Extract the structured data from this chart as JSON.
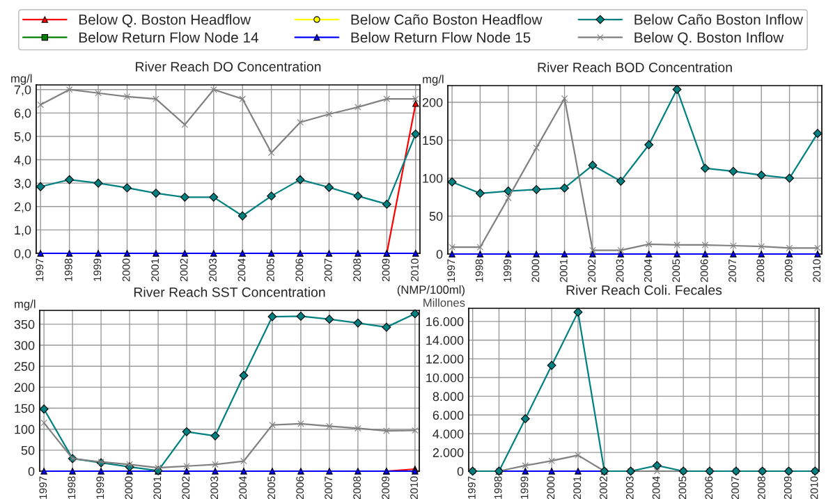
{
  "chart_data": [
    {
      "type": "line",
      "title": "River Reach DO Concentration",
      "ylabel": "mg/l",
      "legend": "top",
      "grid": true,
      "categories": [
        "1997",
        "1998",
        "1999",
        "2000",
        "2001",
        "2002",
        "2003",
        "2004",
        "2005",
        "2006",
        "2007",
        "2008",
        "2009",
        "2010"
      ],
      "ylim": [
        0,
        7.2
      ],
      "yticks": [
        {
          "value": 0,
          "label": "0,0"
        },
        {
          "value": 1,
          "label": "1,0"
        },
        {
          "value": 2,
          "label": "2,0"
        },
        {
          "value": 3,
          "label": "3,0"
        },
        {
          "value": 4,
          "label": "4,0"
        },
        {
          "value": 5,
          "label": "5,0"
        },
        {
          "value": 6,
          "label": "6,0"
        },
        {
          "value": 7,
          "label": "7,0"
        }
      ],
      "series": [
        {
          "name": "Below Q. Boston Headflow",
          "color": "#ff0000",
          "marker": "triangle",
          "values": [
            null,
            null,
            null,
            null,
            null,
            null,
            null,
            null,
            null,
            null,
            null,
            null,
            0,
            6.4
          ]
        },
        {
          "name": "Below Return Flow Node 14",
          "color": "#008000",
          "marker": "square",
          "values": [
            null,
            null,
            null,
            null,
            null,
            null,
            null,
            null,
            null,
            null,
            null,
            null,
            null,
            null
          ]
        },
        {
          "name": "Below Caño Boston Headflow",
          "color": "#ffff00",
          "marker": "circle",
          "values": [
            null,
            null,
            null,
            null,
            null,
            null,
            null,
            null,
            null,
            null,
            null,
            null,
            null,
            null
          ]
        },
        {
          "name": "Below Return Flow Node 15",
          "color": "#0000ff",
          "marker": "triangle",
          "values": [
            0,
            0,
            0,
            0,
            0,
            0,
            0,
            0,
            0,
            0,
            0,
            0,
            0,
            0
          ]
        },
        {
          "name": "Below Caño Boston Inflow",
          "color": "#008080",
          "marker": "diamond",
          "values": [
            2.85,
            3.15,
            3.0,
            2.8,
            2.57,
            2.4,
            2.4,
            1.6,
            2.45,
            3.15,
            2.82,
            2.45,
            2.1,
            5.1
          ]
        },
        {
          "name": "Below Q. Boston Inflow",
          "color": "#808080",
          "marker": "cross",
          "values": [
            6.35,
            7.0,
            6.85,
            6.7,
            6.6,
            5.5,
            7.0,
            6.6,
            4.3,
            5.6,
            5.95,
            6.25,
            6.6,
            6.6
          ]
        }
      ]
    },
    {
      "type": "line",
      "title": "River Reach BOD Concentration",
      "ylabel": "mg/l",
      "grid": true,
      "categories": [
        "1997",
        "1998",
        "1999",
        "2000",
        "2001",
        "2002",
        "2003",
        "2004",
        "2005",
        "2006",
        "2007",
        "2008",
        "2009",
        "2010"
      ],
      "ylim": [
        0,
        222
      ],
      "yticks": [
        0,
        50,
        100,
        150,
        200
      ],
      "series": [
        {
          "color": "#0000ff",
          "marker": "triangle",
          "values": [
            0,
            0,
            0,
            0,
            0,
            0,
            0,
            0,
            0,
            0,
            0,
            0,
            0,
            0
          ]
        },
        {
          "color": "#008080",
          "marker": "diamond",
          "values": [
            95,
            80,
            83,
            85,
            87,
            117,
            96,
            144,
            217,
            113,
            109,
            104,
            100,
            159
          ]
        },
        {
          "color": "#808080",
          "marker": "cross",
          "values": [
            9,
            9,
            74,
            140,
            205,
            5,
            5,
            13,
            12,
            12,
            11,
            10,
            8,
            8
          ]
        }
      ]
    },
    {
      "type": "line",
      "title": "River Reach SST Concentration",
      "ylabel": "mg/l",
      "grid": true,
      "categories": [
        "1997",
        "1998",
        "1999",
        "2000",
        "2001",
        "2002",
        "2003",
        "2004",
        "2005",
        "2006",
        "2007",
        "2008",
        "2009",
        "2010"
      ],
      "ylim": [
        0,
        383
      ],
      "yticks": [
        0,
        50,
        100,
        150,
        200,
        250,
        300,
        350
      ],
      "series": [
        {
          "color": "#ff0000",
          "marker": "triangle",
          "values": [
            null,
            null,
            null,
            null,
            null,
            null,
            null,
            null,
            null,
            null,
            null,
            null,
            0,
            5
          ]
        },
        {
          "color": "#0000ff",
          "marker": "triangle",
          "values": [
            0,
            0,
            0,
            0,
            0,
            0,
            0,
            0,
            0,
            0,
            0,
            0,
            0,
            0
          ]
        },
        {
          "color": "#008080",
          "marker": "diamond",
          "values": [
            148,
            30,
            20,
            10,
            1,
            94,
            84,
            228,
            368,
            369,
            362,
            353,
            343,
            375
          ]
        },
        {
          "color": "#808080",
          "marker": "cross",
          "values": [
            115,
            30,
            22,
            16,
            8,
            12,
            16,
            24,
            110,
            113,
            107,
            102,
            96,
            97
          ]
        }
      ]
    },
    {
      "type": "line",
      "title": "River Reach Coli. Fecales",
      "ylabel": "(NMP/100ml)",
      "annotations": [
        "Millones"
      ],
      "grid": true,
      "categories": [
        "1997",
        "1998",
        "1999",
        "2000",
        "2001",
        "2002",
        "2003",
        "2004",
        "2005",
        "2006",
        "2007",
        "2008",
        "2009",
        "2010"
      ],
      "ylim": [
        0,
        17400
      ],
      "yticks": [
        {
          "value": 0,
          "label": "0"
        },
        {
          "value": 2000,
          "label": "2.000"
        },
        {
          "value": 4000,
          "label": "4.000"
        },
        {
          "value": 6000,
          "label": "6.000"
        },
        {
          "value": 8000,
          "label": "8.000"
        },
        {
          "value": 10000,
          "label": "10.000"
        },
        {
          "value": 12000,
          "label": "12.000"
        },
        {
          "value": 14000,
          "label": "14.000"
        },
        {
          "value": 16000,
          "label": "16.000"
        }
      ],
      "series": [
        {
          "color": "#0000ff",
          "marker": "triangle",
          "values": [
            null,
            0,
            0,
            0,
            0,
            0,
            null,
            null,
            null,
            null,
            null,
            null,
            null,
            null
          ]
        },
        {
          "color": "#808080",
          "marker": "cross",
          "values": [
            0,
            0,
            600,
            1100,
            1700,
            0,
            0,
            0,
            0,
            0,
            0,
            0,
            0,
            0
          ]
        },
        {
          "color": "#008080",
          "marker": "diamond",
          "values": [
            0,
            0,
            5600,
            11300,
            17000,
            0,
            0,
            600,
            0,
            0,
            0,
            0,
            0,
            0
          ]
        }
      ]
    }
  ]
}
